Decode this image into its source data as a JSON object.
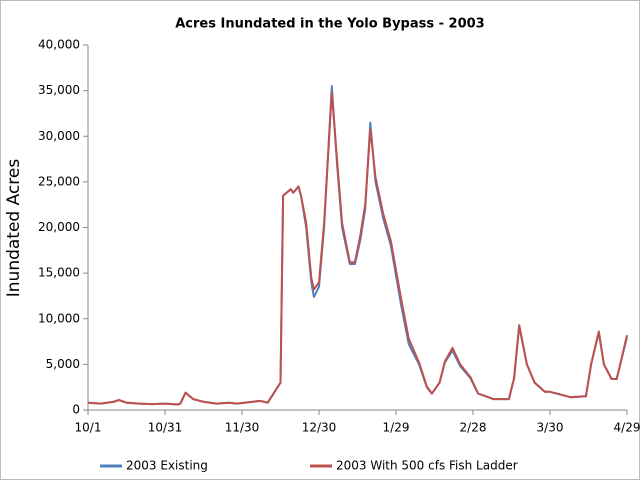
{
  "chart_data": {
    "type": "line",
    "title": "Acres Inundated in the Yolo Bypass - 2003",
    "y_label": "Inundated Acres",
    "x": [
      0,
      5,
      10,
      12,
      15,
      20,
      25,
      30,
      35,
      36,
      38,
      41,
      45,
      50,
      55,
      58,
      67,
      70,
      75,
      76,
      79,
      80,
      82,
      83,
      85,
      87,
      88,
      90,
      92,
      95,
      97,
      99,
      102,
      104,
      106,
      108,
      110,
      112,
      115,
      118,
      122,
      125,
      129,
      132,
      134,
      137,
      139,
      142,
      145,
      149,
      152,
      158,
      164,
      166,
      168,
      171,
      174,
      178,
      180,
      188,
      194,
      196,
      199,
      201,
      204,
      206,
      210
    ],
    "series": [
      {
        "name": "2003 Existing",
        "color": "#4f81bd",
        "values": [
          800,
          700,
          900,
          1100,
          800,
          700,
          650,
          700,
          600,
          700,
          1900,
          1200,
          900,
          700,
          800,
          700,
          1000,
          800,
          3000,
          23500,
          24200,
          23800,
          24500,
          23500,
          20000,
          14000,
          12400,
          13500,
          20000,
          35500,
          27000,
          20000,
          16000,
          16000,
          18500,
          22000,
          31500,
          25000,
          21000,
          18000,
          11500,
          7200,
          5000,
          2500,
          1800,
          3000,
          5200,
          6500,
          4800,
          3500,
          1800,
          1200,
          1200,
          3500,
          9200,
          5000,
          3000,
          2000,
          2000,
          1400,
          1500,
          5000,
          8500,
          5000,
          3400,
          3400,
          8000
        ]
      },
      {
        "name": "2003 With 500 cfs Fish Ladder",
        "color": "#c0504d",
        "values": [
          800,
          700,
          900,
          1100,
          800,
          700,
          650,
          700,
          600,
          700,
          1900,
          1200,
          900,
          700,
          800,
          700,
          1000,
          800,
          3000,
          23500,
          24200,
          23800,
          24500,
          23500,
          20500,
          14500,
          13200,
          14000,
          20500,
          34800,
          27500,
          20500,
          16200,
          16200,
          19000,
          22500,
          30800,
          25500,
          21500,
          18500,
          12200,
          7800,
          5200,
          2600,
          1800,
          3000,
          5300,
          6800,
          5000,
          3600,
          1800,
          1200,
          1200,
          3500,
          9300,
          5000,
          3000,
          2000,
          2000,
          1400,
          1500,
          5000,
          8600,
          5000,
          3400,
          3400,
          8200
        ]
      }
    ],
    "xlim": [
      0,
      210
    ],
    "xticks": [
      {
        "value": 0,
        "label": "10/1"
      },
      {
        "value": 30,
        "label": "10/31"
      },
      {
        "value": 60,
        "label": "11/30"
      },
      {
        "value": 90,
        "label": "12/30"
      },
      {
        "value": 120,
        "label": "1/29"
      },
      {
        "value": 150,
        "label": "2/28"
      },
      {
        "value": 180,
        "label": "3/30"
      },
      {
        "value": 210,
        "label": "4/29"
      }
    ],
    "ylim": [
      0,
      40000
    ],
    "yticks": [
      0,
      {
        "value": 5000,
        "label": "5,000"
      },
      {
        "value": 10000,
        "label": "10,000"
      },
      {
        "value": 15000,
        "label": "15,000"
      },
      {
        "value": 20000,
        "label": "20,000"
      },
      {
        "value": 25000,
        "label": "25,000"
      },
      {
        "value": 30000,
        "label": "30,000"
      },
      {
        "value": 35000,
        "label": "35,000"
      },
      {
        "value": 40000,
        "label": "40,000"
      }
    ],
    "grid": false,
    "legend": "bottom"
  }
}
